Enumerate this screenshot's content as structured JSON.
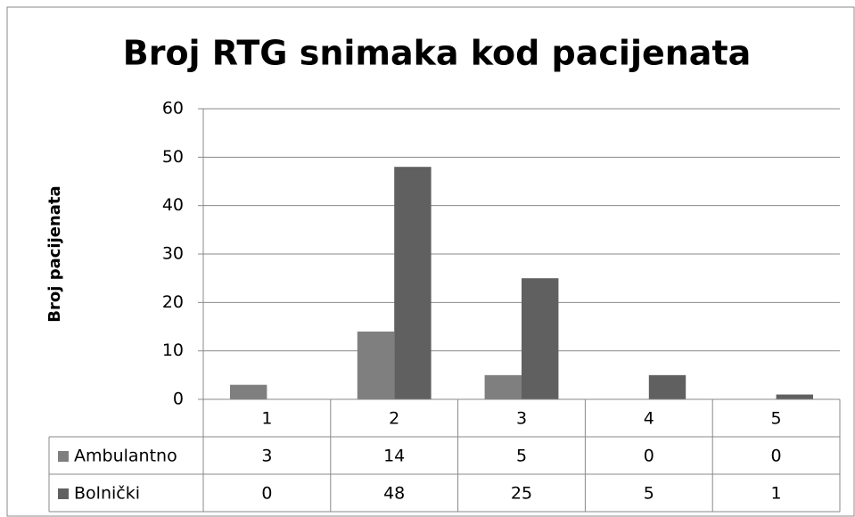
{
  "chart_data": {
    "type": "bar",
    "title": "Broj RTG snimaka kod pacijenata",
    "y_label": "Broj pacijenata",
    "categories": [
      "1",
      "2",
      "3",
      "4",
      "5"
    ],
    "series": [
      {
        "name": "Ambulantno",
        "color": "#7f7f7f",
        "values": [
          3,
          14,
          5,
          0,
          0
        ]
      },
      {
        "name": "Bolnički",
        "color": "#606060",
        "values": [
          0,
          48,
          25,
          5,
          1
        ]
      }
    ],
    "ylim": [
      0,
      60
    ],
    "yticks": [
      0,
      10,
      20,
      30,
      40,
      50,
      60
    ],
    "grid": true,
    "legend": "data-table"
  }
}
